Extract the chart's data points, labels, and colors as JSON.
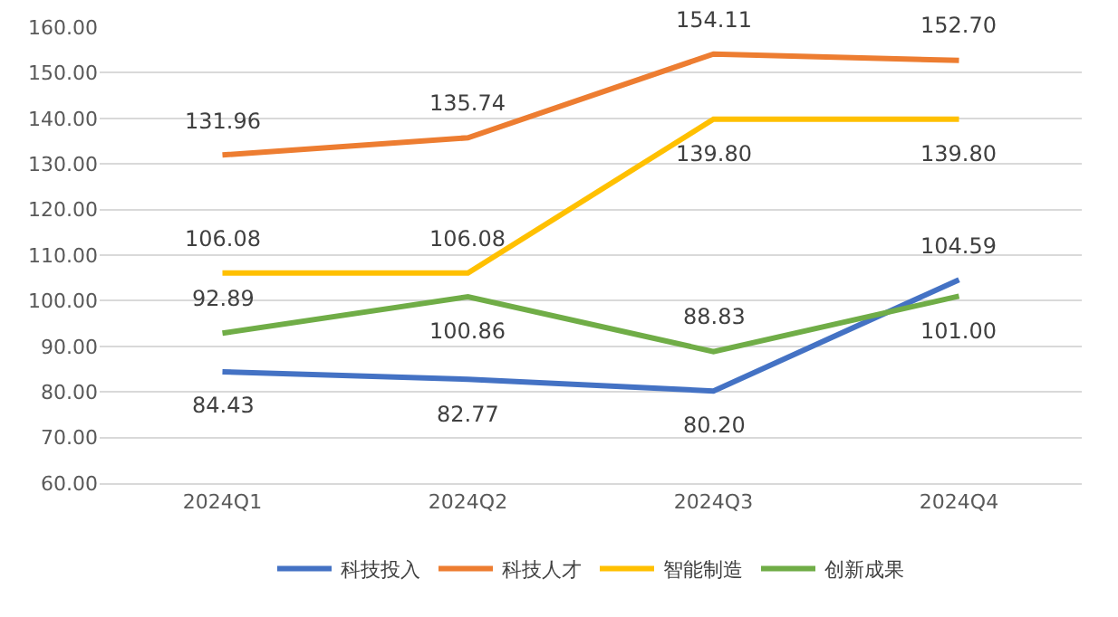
{
  "chart_data": {
    "type": "line",
    "categories": [
      "2024Q1",
      "2024Q2",
      "2024Q3",
      "2024Q4"
    ],
    "series": [
      {
        "name": "科技投入",
        "color": "#4472c4",
        "values": [
          84.43,
          82.77,
          80.2,
          104.59
        ],
        "value_labels": [
          "84.43",
          "82.77",
          "80.20",
          "104.59"
        ]
      },
      {
        "name": "科技人才",
        "color": "#ed7d31",
        "values": [
          131.96,
          135.74,
          154.11,
          152.7
        ],
        "value_labels": [
          "131.96",
          "135.74",
          "154.11",
          "152.70"
        ]
      },
      {
        "name": "智能制造",
        "color": "#ffc000",
        "values": [
          106.08,
          106.08,
          139.8,
          139.8
        ],
        "value_labels": [
          "106.08",
          "106.08",
          "139.80",
          "139.80"
        ]
      },
      {
        "name": "创新成果",
        "color": "#70ad47",
        "values": [
          92.89,
          100.86,
          88.83,
          101.0
        ],
        "value_labels": [
          "92.89",
          "100.86",
          "88.83",
          "101.00"
        ]
      }
    ],
    "ylim": [
      60,
      160
    ],
    "yticks": [
      {
        "value": 60,
        "label": "60.00"
      },
      {
        "value": 70,
        "label": "70.00"
      },
      {
        "value": 80,
        "label": "80.00"
      },
      {
        "value": 90,
        "label": "90.00"
      },
      {
        "value": 100,
        "label": "100.00"
      },
      {
        "value": 110,
        "label": "110.00"
      },
      {
        "value": 120,
        "label": "120.00"
      },
      {
        "value": 130,
        "label": "130.00"
      },
      {
        "value": 140,
        "label": "140.00"
      },
      {
        "value": 150,
        "label": "150.00"
      },
      {
        "value": 160,
        "label": "160.00"
      }
    ],
    "grid": "y",
    "legend": "bottom",
    "marker": "none",
    "line_style": "solid"
  }
}
